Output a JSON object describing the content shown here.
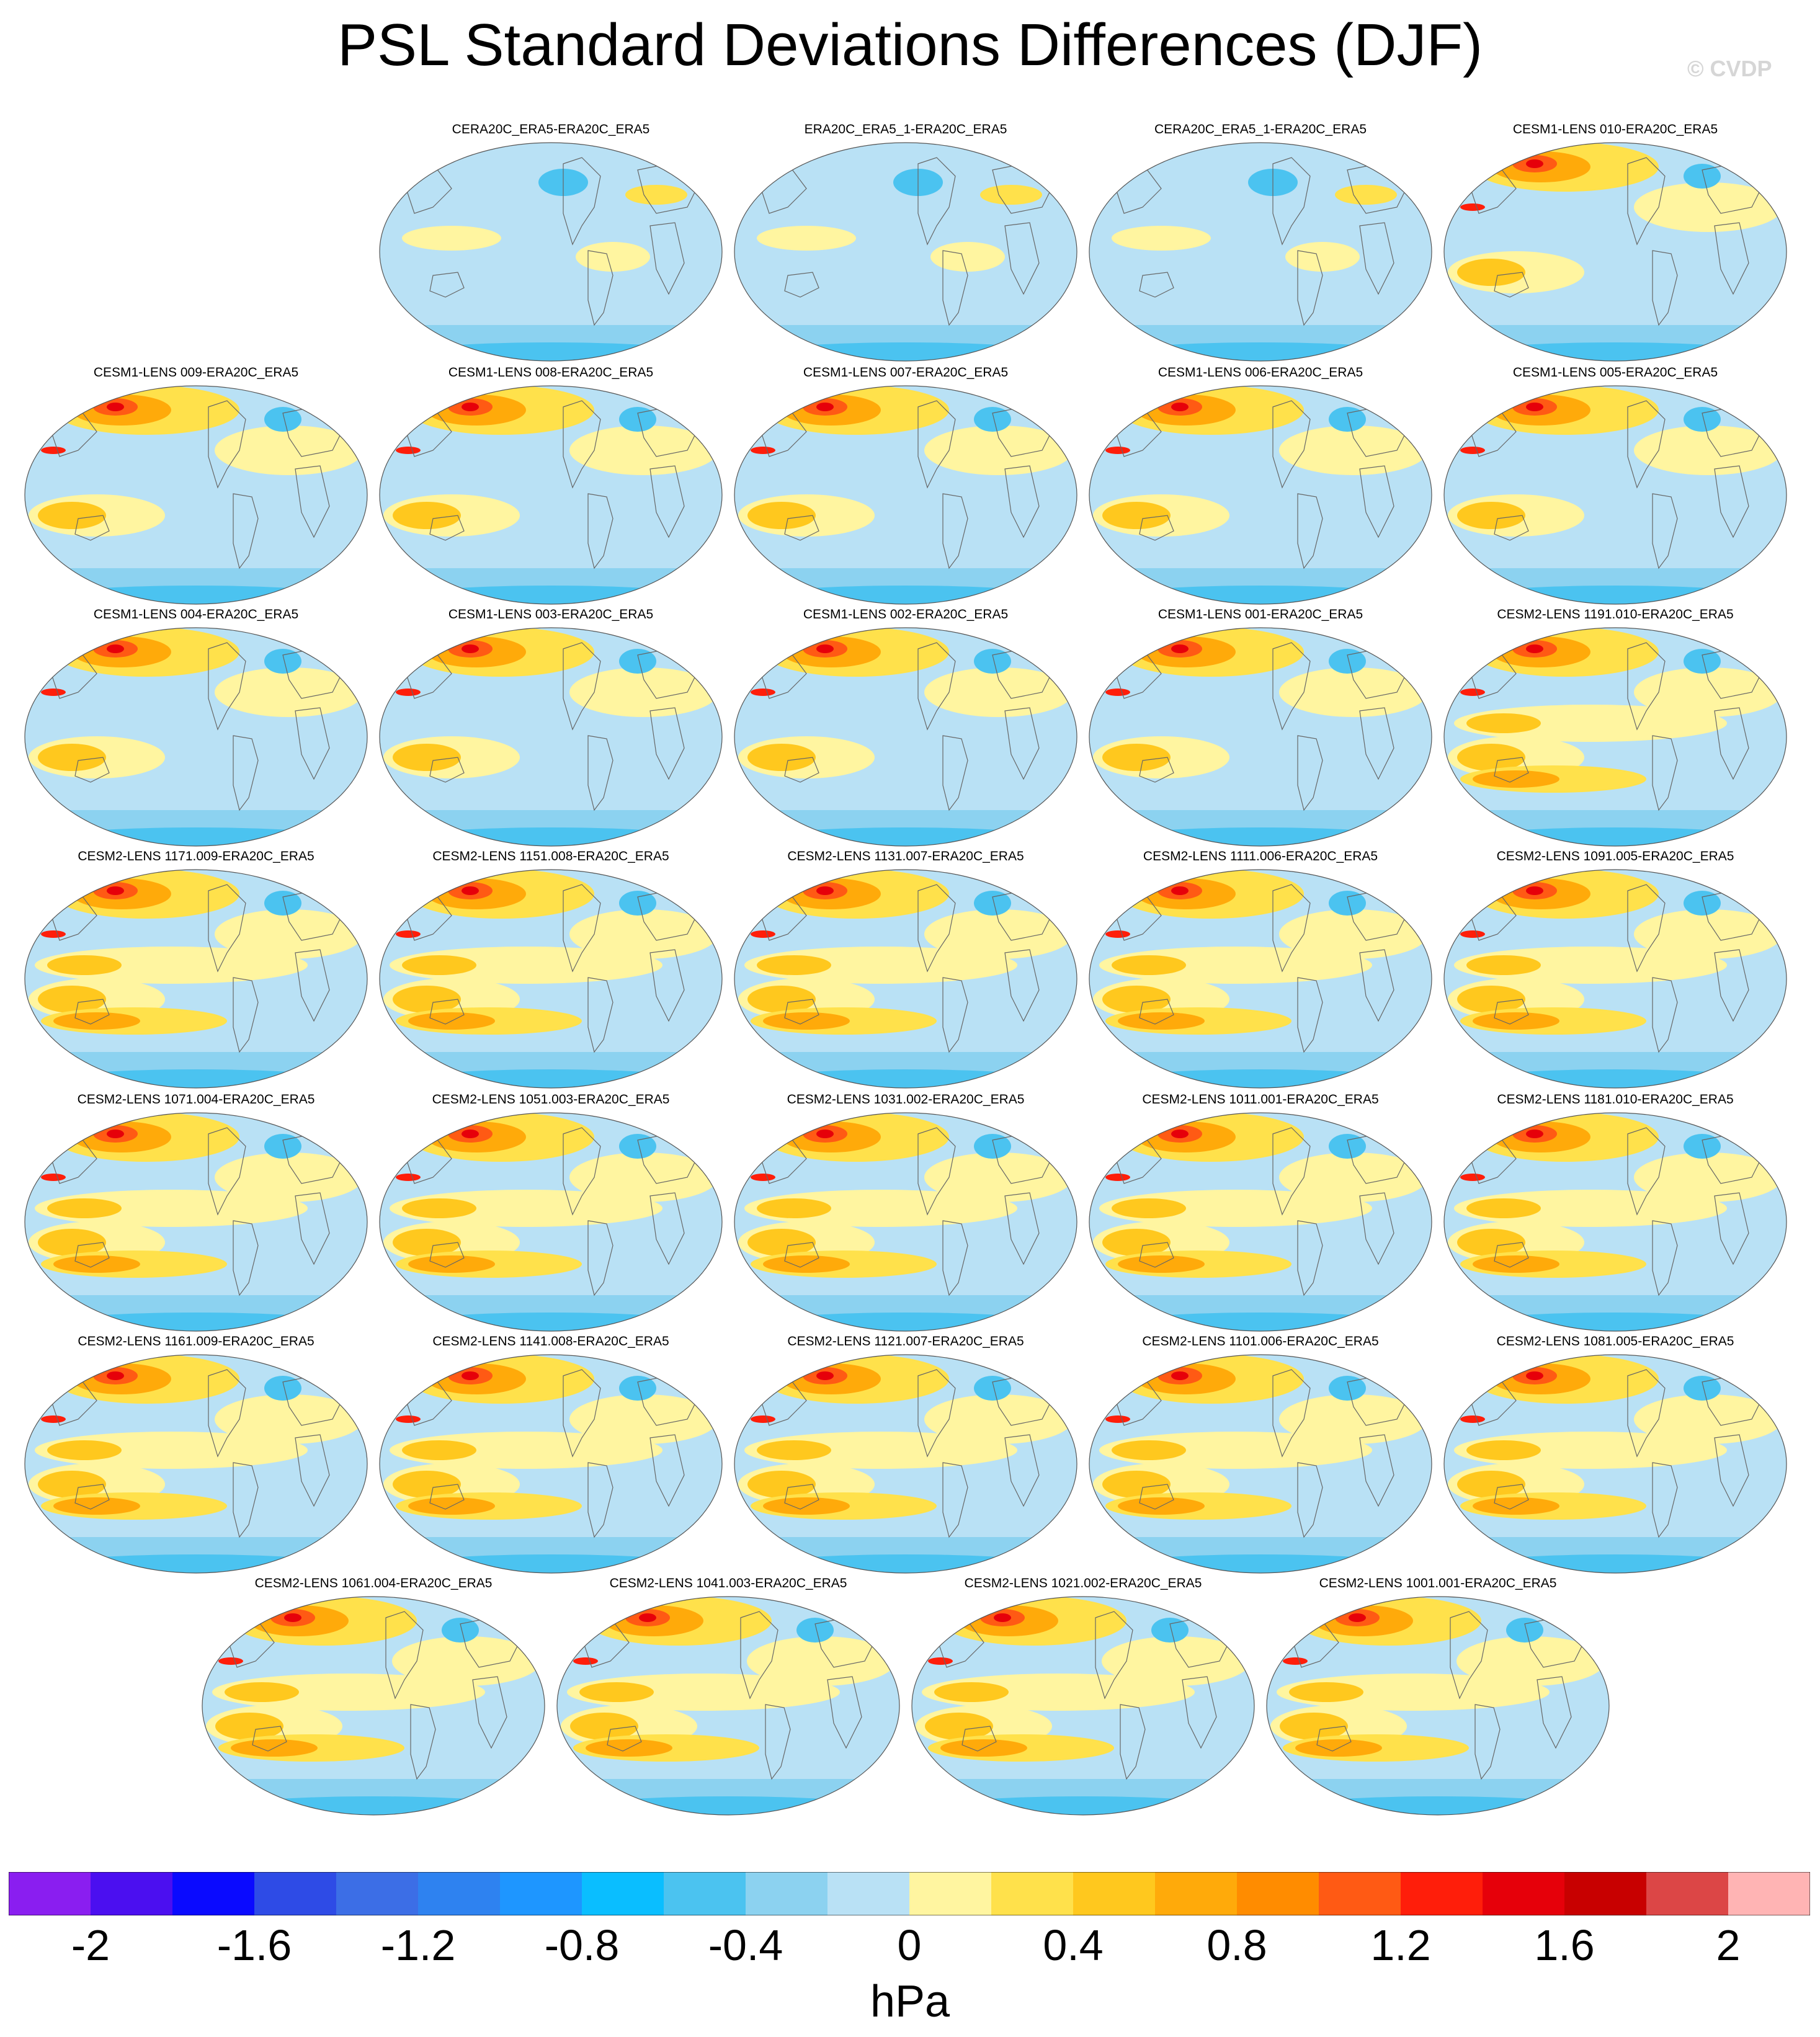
{
  "figure": {
    "title": "PSL Standard Deviations Differences (DJF)",
    "credit": "© CVDP",
    "unit": "hPa"
  },
  "panels": [
    "CERA20C_ERA5-ERA20C_ERA5",
    "ERA20C_ERA5_1-ERA20C_ERA5",
    "CERA20C_ERA5_1-ERA20C_ERA5",
    "CESM1-LENS 010-ERA20C_ERA5",
    "CESM1-LENS 009-ERA20C_ERA5",
    "CESM1-LENS 008-ERA20C_ERA5",
    "CESM1-LENS 007-ERA20C_ERA5",
    "CESM1-LENS 006-ERA20C_ERA5",
    "CESM1-LENS 005-ERA20C_ERA5",
    "CESM1-LENS 004-ERA20C_ERA5",
    "CESM1-LENS 003-ERA20C_ERA5",
    "CESM1-LENS 002-ERA20C_ERA5",
    "CESM1-LENS 001-ERA20C_ERA5",
    "CESM2-LENS 1191.010-ERA20C_ERA5",
    "CESM2-LENS 1171.009-ERA20C_ERA5",
    "CESM2-LENS 1151.008-ERA20C_ERA5",
    "CESM2-LENS 1131.007-ERA20C_ERA5",
    "CESM2-LENS 1111.006-ERA20C_ERA5",
    "CESM2-LENS 1091.005-ERA20C_ERA5",
    "CESM2-LENS 1071.004-ERA20C_ERA5",
    "CESM2-LENS 1051.003-ERA20C_ERA5",
    "CESM2-LENS 1031.002-ERA20C_ERA5",
    "CESM2-LENS 1011.001-ERA20C_ERA5",
    "CESM2-LENS 1181.010-ERA20C_ERA5",
    "CESM2-LENS 1161.009-ERA20C_ERA5",
    "CESM2-LENS 1141.008-ERA20C_ERA5",
    "CESM2-LENS 1121.007-ERA20C_ERA5",
    "CESM2-LENS 1101.006-ERA20C_ERA5",
    "CESM2-LENS 1081.005-ERA20C_ERA5",
    "CESM2-LENS 1061.004-ERA20C_ERA5",
    "CESM2-LENS 1041.003-ERA20C_ERA5",
    "CESM2-LENS 1021.002-ERA20C_ERA5",
    "CESM2-LENS 1001.001-ERA20C_ERA5"
  ],
  "colorbar": {
    "colors": [
      "#8a1ef0",
      "#4b0ff0",
      "#0a0aff",
      "#2e4be6",
      "#3c6ee6",
      "#2e82f0",
      "#1e96ff",
      "#0abeff",
      "#4bc3f0",
      "#8cd2f0",
      "#b9e1f5",
      "#fff5a0",
      "#ffe14b",
      "#ffc81e",
      "#ffaa0a",
      "#ff8c00",
      "#ff5a14",
      "#ff1e0a",
      "#e6000a",
      "#c80000",
      "#dc4646",
      "#ffb4b4"
    ],
    "tick_labels": [
      "-2",
      "-1.6",
      "-1.2",
      "-0.8",
      "-0.4",
      "0",
      "0.4",
      "0.8",
      "1.2",
      "1.6",
      "2"
    ]
  }
}
